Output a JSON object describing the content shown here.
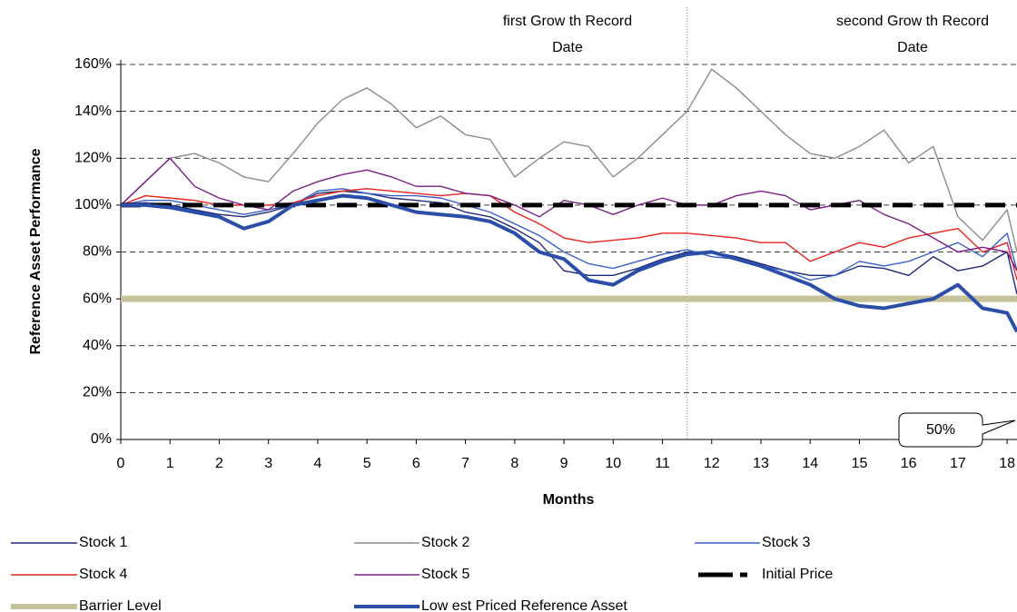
{
  "chart_data": {
    "type": "line",
    "y_label": "Reference Asset Performance",
    "x_label": "Months",
    "xlim": [
      0,
      18.2
    ],
    "ylim": [
      0,
      160
    ],
    "xticks": [
      0,
      1,
      2,
      3,
      4,
      5,
      6,
      7,
      8,
      9,
      10,
      11,
      12,
      13,
      14,
      15,
      16,
      17,
      18
    ],
    "yticks": [
      {
        "value": 0,
        "label": "0%"
      },
      {
        "value": 20,
        "label": "20%"
      },
      {
        "value": 40,
        "label": "40%"
      },
      {
        "value": 60,
        "label": "60%"
      },
      {
        "value": 80,
        "label": "80%"
      },
      {
        "value": 100,
        "label": "100%"
      },
      {
        "value": 120,
        "label": "120%"
      },
      {
        "value": 140,
        "label": "140%"
      },
      {
        "value": 160,
        "label": "160%"
      }
    ],
    "grid": true,
    "vlines": [
      11.5
    ],
    "annotations": [
      [
        "first Grow th Record",
        "Date"
      ],
      [
        "second Grow th Record",
        "Date"
      ],
      [
        "50%"
      ]
    ],
    "x": [
      0,
      0.5,
      1,
      1.5,
      2,
      2.5,
      3,
      3.5,
      4,
      4.5,
      5,
      5.5,
      6,
      6.5,
      7,
      7.5,
      8,
      8.5,
      9,
      9.5,
      10,
      10.5,
      11,
      11.5,
      12,
      12.5,
      13,
      13.5,
      14,
      14.5,
      15,
      15.5,
      16,
      16.5,
      17,
      17.5,
      18,
      18.2
    ],
    "series": [
      {
        "name": "Stock 1",
        "color": "#1f2a7a",
        "width": 1.4,
        "values": [
          100,
          101,
          100,
          98,
          96,
          95,
          97,
          100,
          105,
          106,
          105,
          103,
          102,
          101,
          97,
          95,
          90,
          84,
          72,
          70,
          70,
          73,
          77,
          80,
          80,
          78,
          75,
          72,
          70,
          70,
          74,
          73,
          70,
          78,
          72,
          74,
          80,
          62
        ]
      },
      {
        "name": "Stock 2",
        "color": "#8c8c8c",
        "width": 1.4,
        "values": [
          100,
          110,
          120,
          122,
          118,
          112,
          110,
          122,
          135,
          145,
          150,
          143,
          133,
          138,
          130,
          128,
          112,
          120,
          127,
          125,
          112,
          120,
          130,
          140,
          158,
          150,
          140,
          130,
          122,
          120,
          125,
          132,
          118,
          125,
          95,
          85,
          98,
          80
        ]
      },
      {
        "name": "Stock 3",
        "color": "#3a5fc8",
        "width": 1.4,
        "values": [
          100,
          102,
          102,
          100,
          98,
          96,
          98,
          100,
          106,
          107,
          105,
          104,
          104,
          103,
          100,
          97,
          92,
          87,
          80,
          75,
          73,
          76,
          79,
          81,
          78,
          77,
          74,
          72,
          68,
          70,
          76,
          74,
          76,
          80,
          84,
          78,
          88,
          72
        ]
      },
      {
        "name": "Stock 4",
        "color": "#e8231e",
        "width": 1.4,
        "values": [
          100,
          104,
          103,
          102,
          100,
          100,
          100,
          101,
          104,
          106,
          107,
          106,
          105,
          104,
          105,
          104,
          97,
          92,
          86,
          84,
          85,
          86,
          88,
          88,
          87,
          86,
          84,
          84,
          76,
          80,
          84,
          82,
          86,
          88,
          90,
          80,
          84,
          68
        ]
      },
      {
        "name": "Stock 5",
        "color": "#7a1f86",
        "width": 1.4,
        "values": [
          100,
          110,
          120,
          108,
          103,
          100,
          98,
          106,
          110,
          113,
          115,
          112,
          108,
          108,
          105,
          104,
          100,
          95,
          102,
          100,
          96,
          100,
          103,
          100,
          100,
          104,
          106,
          104,
          98,
          100,
          102,
          96,
          92,
          86,
          80,
          82,
          80,
          72
        ]
      },
      {
        "name": "Initial Price",
        "color": "#000000",
        "width": 5,
        "dash": "22 12",
        "value": 100
      },
      {
        "name": "Barrier Level",
        "color": "#c5c29a",
        "width": 7,
        "value": 60
      },
      {
        "name": "Low est Priced Reference Asset",
        "color": "#2b4fa8",
        "width": 4,
        "values": [
          100,
          100,
          99,
          97,
          95,
          90,
          93,
          100,
          102,
          104,
          103,
          100,
          97,
          96,
          95,
          93,
          88,
          80,
          77,
          68,
          66,
          72,
          76,
          79,
          80,
          77,
          74,
          70,
          66,
          60,
          57,
          56,
          58,
          60,
          66,
          56,
          54,
          46
        ]
      }
    ]
  }
}
